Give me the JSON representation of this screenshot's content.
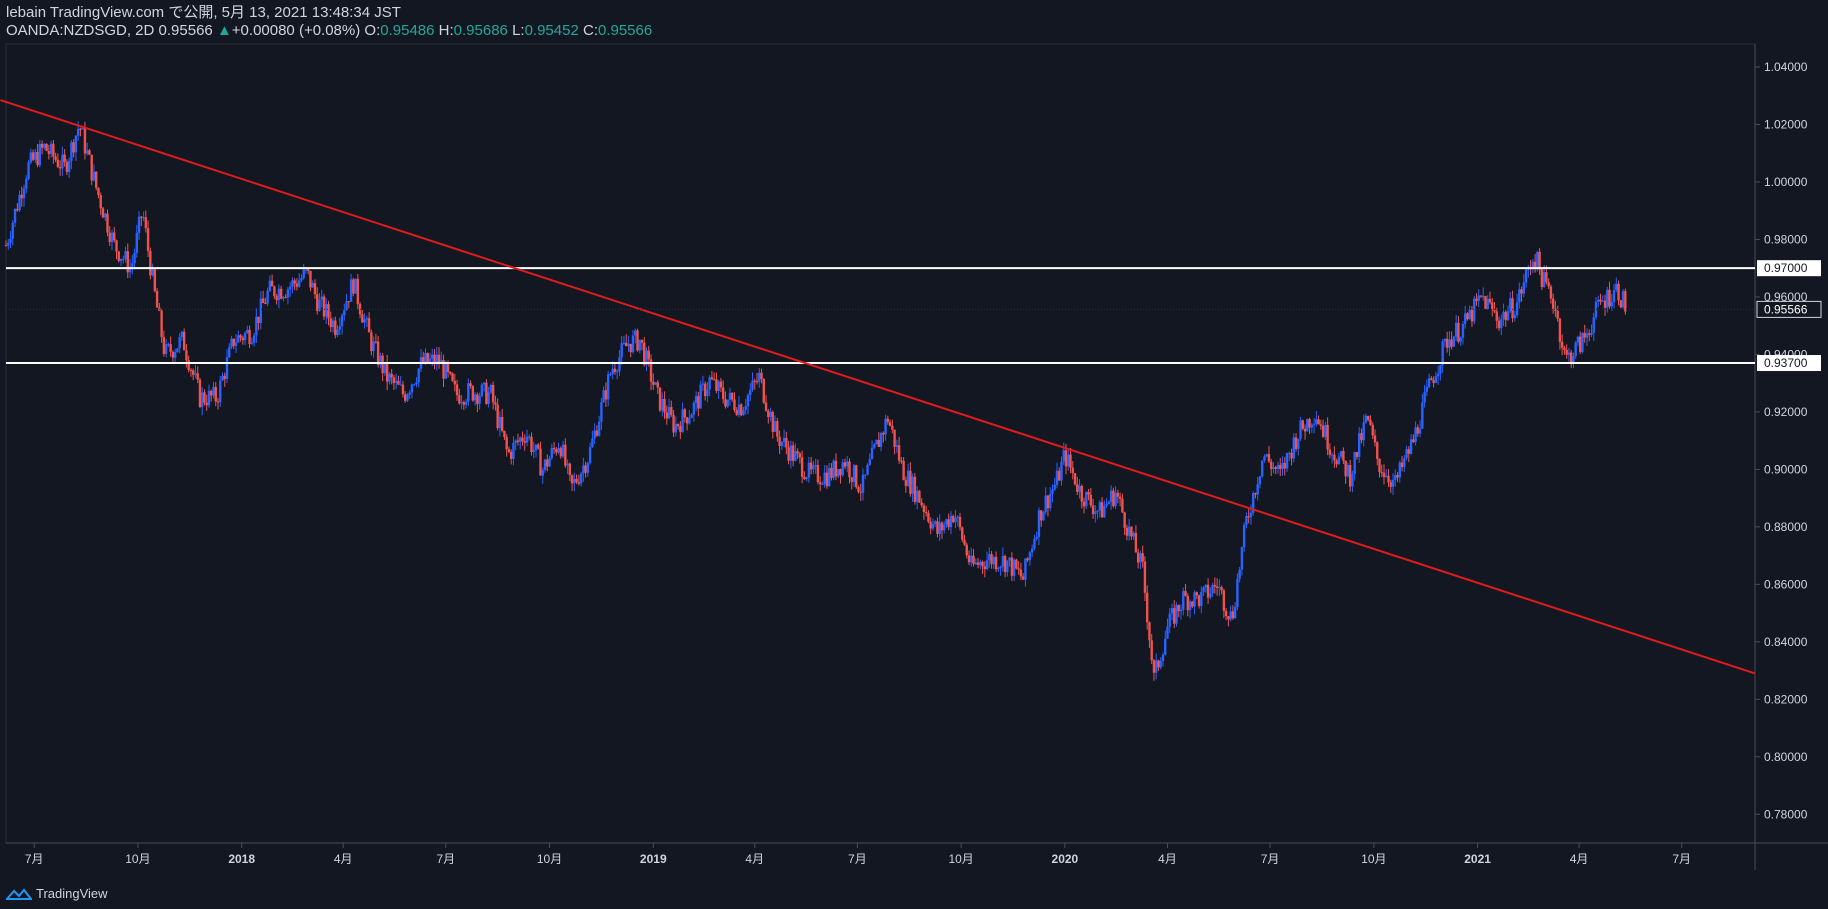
{
  "header": {
    "line1": "lebain TradingView.com で公開, 5月 13, 2021 13:48:34 JST",
    "symbol": "OANDA:NZDSGD, 2D",
    "last": "0.95566",
    "change_arrow": "▲",
    "change": "+0.00080 (+0.08%)",
    "o_label": "O:",
    "o_val": "0.95486",
    "h_label": "H:",
    "h_val": "0.95686",
    "l_label": "L:",
    "l_val": "0.95452",
    "c_label": "C:",
    "c_val": "0.95566"
  },
  "footer": {
    "brand": "TradingView",
    "icon": "tradingview-logo-icon"
  },
  "colors": {
    "bg": "#131722",
    "up": "#2962ff",
    "down": "#ef5350",
    "trend": "#e01b1b",
    "level": "#ffffff",
    "axis_text": "#d1d4dc"
  },
  "chart_data": {
    "type": "candlestick",
    "title": "",
    "xlabel": "",
    "ylabel": "",
    "ylim": [
      0.77,
      1.048
    ],
    "y_ticks": [
      "1.04000",
      "1.02000",
      "1.00000",
      "0.98000",
      "0.96000",
      "0.94000",
      "0.92000",
      "0.90000",
      "0.88000",
      "0.86000",
      "0.84000",
      "0.82000",
      "0.80000",
      "0.78000"
    ],
    "x_ticks": [
      "7月",
      "10月",
      "2018",
      "4月",
      "7月",
      "10月",
      "2019",
      "4月",
      "7月",
      "10月",
      "2020",
      "4月",
      "7月",
      "10月",
      "2021",
      "4月",
      "7月"
    ],
    "x_tick_dates": [
      "2017-07-01",
      "2017-10-01",
      "2018-01-01",
      "2018-04-01",
      "2018-07-01",
      "2018-10-01",
      "2019-01-01",
      "2019-04-01",
      "2019-07-01",
      "2019-10-01",
      "2020-01-01",
      "2020-04-01",
      "2020-07-01",
      "2020-10-01",
      "2021-01-01",
      "2021-04-01",
      "2021-07-01"
    ],
    "x_range": [
      "2017-06-06",
      "2021-09-04"
    ],
    "series": [
      {
        "points": [
          {
            "date": "2017-06-06",
            "close": 0.978
          },
          {
            "date": "2017-06-25",
            "close": 1.005
          },
          {
            "date": "2017-07-10",
            "close": 1.012
          },
          {
            "date": "2017-07-28",
            "close": 1.005
          },
          {
            "date": "2017-08-10",
            "close": 1.02
          },
          {
            "date": "2017-08-25",
            "close": 0.998
          },
          {
            "date": "2017-09-10",
            "close": 0.978
          },
          {
            "date": "2017-09-25",
            "close": 0.97
          },
          {
            "date": "2017-10-05",
            "close": 0.99
          },
          {
            "date": "2017-10-15",
            "close": 0.963
          },
          {
            "date": "2017-10-25",
            "close": 0.94
          },
          {
            "date": "2017-11-10",
            "close": 0.945
          },
          {
            "date": "2017-11-25",
            "close": 0.925
          },
          {
            "date": "2017-12-10",
            "close": 0.925
          },
          {
            "date": "2017-12-25",
            "close": 0.945
          },
          {
            "date": "2018-01-10",
            "close": 0.948
          },
          {
            "date": "2018-01-25",
            "close": 0.962
          },
          {
            "date": "2018-02-10",
            "close": 0.963
          },
          {
            "date": "2018-02-28",
            "close": 0.968
          },
          {
            "date": "2018-03-10",
            "close": 0.958
          },
          {
            "date": "2018-03-25",
            "close": 0.95
          },
          {
            "date": "2018-04-10",
            "close": 0.965
          },
          {
            "date": "2018-04-25",
            "close": 0.945
          },
          {
            "date": "2018-05-10",
            "close": 0.932
          },
          {
            "date": "2018-05-25",
            "close": 0.926
          },
          {
            "date": "2018-06-10",
            "close": 0.937
          },
          {
            "date": "2018-06-25",
            "close": 0.938
          },
          {
            "date": "2018-07-10",
            "close": 0.926
          },
          {
            "date": "2018-07-25",
            "close": 0.927
          },
          {
            "date": "2018-08-10",
            "close": 0.926
          },
          {
            "date": "2018-08-25",
            "close": 0.905
          },
          {
            "date": "2018-09-10",
            "close": 0.913
          },
          {
            "date": "2018-09-25",
            "close": 0.9
          },
          {
            "date": "2018-10-10",
            "close": 0.91
          },
          {
            "date": "2018-10-20",
            "close": 0.893
          },
          {
            "date": "2018-11-05",
            "close": 0.905
          },
          {
            "date": "2018-11-25",
            "close": 0.935
          },
          {
            "date": "2018-12-10",
            "close": 0.944
          },
          {
            "date": "2018-12-20",
            "close": 0.945
          },
          {
            "date": "2019-01-05",
            "close": 0.925
          },
          {
            "date": "2019-01-20",
            "close": 0.915
          },
          {
            "date": "2019-02-05",
            "close": 0.921
          },
          {
            "date": "2019-02-20",
            "close": 0.931
          },
          {
            "date": "2019-03-05",
            "close": 0.925
          },
          {
            "date": "2019-03-20",
            "close": 0.922
          },
          {
            "date": "2019-04-05",
            "close": 0.932
          },
          {
            "date": "2019-04-20",
            "close": 0.912
          },
          {
            "date": "2019-05-05",
            "close": 0.905
          },
          {
            "date": "2019-05-20",
            "close": 0.898
          },
          {
            "date": "2019-06-05",
            "close": 0.898
          },
          {
            "date": "2019-06-20",
            "close": 0.903
          },
          {
            "date": "2019-07-05",
            "close": 0.893
          },
          {
            "date": "2019-07-15",
            "close": 0.905
          },
          {
            "date": "2019-07-28",
            "close": 0.918
          },
          {
            "date": "2019-08-10",
            "close": 0.9
          },
          {
            "date": "2019-08-25",
            "close": 0.89
          },
          {
            "date": "2019-09-10",
            "close": 0.878
          },
          {
            "date": "2019-09-25",
            "close": 0.885
          },
          {
            "date": "2019-10-10",
            "close": 0.866
          },
          {
            "date": "2019-10-25",
            "close": 0.869
          },
          {
            "date": "2019-11-10",
            "close": 0.868
          },
          {
            "date": "2019-11-25",
            "close": 0.862
          },
          {
            "date": "2019-12-10",
            "close": 0.885
          },
          {
            "date": "2019-12-25",
            "close": 0.896
          },
          {
            "date": "2020-01-01",
            "close": 0.905
          },
          {
            "date": "2020-01-15",
            "close": 0.892
          },
          {
            "date": "2020-02-01",
            "close": 0.885
          },
          {
            "date": "2020-02-15",
            "close": 0.892
          },
          {
            "date": "2020-03-01",
            "close": 0.875
          },
          {
            "date": "2020-03-10",
            "close": 0.865
          },
          {
            "date": "2020-03-20",
            "close": 0.827
          },
          {
            "date": "2020-04-01",
            "close": 0.845
          },
          {
            "date": "2020-04-15",
            "close": 0.855
          },
          {
            "date": "2020-05-01",
            "close": 0.855
          },
          {
            "date": "2020-05-15",
            "close": 0.86
          },
          {
            "date": "2020-05-28",
            "close": 0.848
          },
          {
            "date": "2020-06-10",
            "close": 0.882
          },
          {
            "date": "2020-06-25",
            "close": 0.905
          },
          {
            "date": "2020-07-10",
            "close": 0.898
          },
          {
            "date": "2020-07-25",
            "close": 0.912
          },
          {
            "date": "2020-08-10",
            "close": 0.92
          },
          {
            "date": "2020-08-25",
            "close": 0.907
          },
          {
            "date": "2020-09-10",
            "close": 0.898
          },
          {
            "date": "2020-09-25",
            "close": 0.918
          },
          {
            "date": "2020-10-05",
            "close": 0.902
          },
          {
            "date": "2020-10-20",
            "close": 0.895
          },
          {
            "date": "2020-11-05",
            "close": 0.91
          },
          {
            "date": "2020-11-20",
            "close": 0.93
          },
          {
            "date": "2020-12-05",
            "close": 0.945
          },
          {
            "date": "2020-12-20",
            "close": 0.95
          },
          {
            "date": "2021-01-05",
            "close": 0.96
          },
          {
            "date": "2021-01-20",
            "close": 0.952
          },
          {
            "date": "2021-02-05",
            "close": 0.958
          },
          {
            "date": "2021-02-20",
            "close": 0.975
          },
          {
            "date": "2021-03-01",
            "close": 0.965
          },
          {
            "date": "2021-03-10",
            "close": 0.958
          },
          {
            "date": "2021-03-20",
            "close": 0.938
          },
          {
            "date": "2021-04-05",
            "close": 0.945
          },
          {
            "date": "2021-04-20",
            "close": 0.958
          },
          {
            "date": "2021-05-05",
            "close": 0.963
          },
          {
            "date": "2021-05-13",
            "close": 0.95566
          }
        ]
      }
    ],
    "annotations": {
      "trendline": {
        "from": {
          "date": "2017-06-01",
          "price": 1.0285
        },
        "to": {
          "date": "2021-09-04",
          "price": 0.829
        }
      },
      "horizontal_levels": [
        {
          "price": 0.97,
          "label": "0.97000"
        },
        {
          "price": 0.937,
          "label": "0.93700"
        }
      ],
      "last_price_label": "0.95566"
    }
  }
}
